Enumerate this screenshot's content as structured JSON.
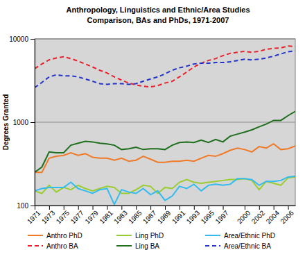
{
  "chart_data": {
    "type": "line",
    "title": "Anthropology, Linguistics and Ethnic/Area Studies",
    "subtitle": "Comparison, BAs and PhDs, 1971-2007",
    "y_label": "Degrees Granted",
    "x": [
      1971,
      1972,
      1973,
      1974,
      1975,
      1976,
      1977,
      1978,
      1979,
      1980,
      1981,
      1982,
      1983,
      1984,
      1985,
      1986,
      1987,
      1988,
      1989,
      1990,
      1991,
      1992,
      1993,
      1994,
      1995,
      1996,
      1997,
      1998,
      1999,
      2000,
      2001,
      2002,
      2003,
      2004,
      2005,
      2006,
      2007
    ],
    "xlim": [
      1971,
      2007
    ],
    "xticks": [
      1971,
      1973,
      1975,
      1977,
      1979,
      1981,
      1983,
      1985,
      1987,
      1989,
      1991,
      1993,
      1995,
      1997,
      2000,
      2002,
      2004,
      2006
    ],
    "ylim": [
      100,
      10000
    ],
    "yticks": [
      100,
      1000,
      10000
    ],
    "log": "y",
    "grid": true,
    "legend": "bottom",
    "series": [
      {
        "name": "Anthro PhD",
        "color": "#f07a28",
        "line_style": "solid",
        "values": [
          250,
          250,
          370,
          390,
          400,
          430,
          400,
          420,
          380,
          370,
          370,
          350,
          370,
          340,
          350,
          390,
          360,
          330,
          330,
          340,
          340,
          350,
          340,
          370,
          400,
          390,
          420,
          460,
          490,
          470,
          440,
          510,
          490,
          550,
          470,
          480,
          520
        ]
      },
      {
        "name": "Ling PhD",
        "color": "#9acd32",
        "line_style": "solid",
        "values": [
          150,
          140,
          175,
          145,
          165,
          155,
          175,
          160,
          150,
          160,
          170,
          165,
          140,
          140,
          155,
          175,
          170,
          140,
          165,
          160,
          190,
          205,
          190,
          185,
          190,
          195,
          200,
          205,
          205,
          210,
          200,
          155,
          195,
          185,
          175,
          215,
          220
        ]
      },
      {
        "name": "Area/Ethnic PhD",
        "color": "#33bbee",
        "line_style": "solid",
        "values": [
          150,
          160,
          165,
          165,
          165,
          190,
          160,
          150,
          140,
          155,
          160,
          103,
          155,
          145,
          140,
          160,
          135,
          150,
          115,
          130,
          170,
          160,
          180,
          150,
          175,
          180,
          175,
          180,
          210,
          210,
          205,
          175,
          195,
          195,
          200,
          220,
          225
        ]
      },
      {
        "name": "Anthro BA",
        "color": "#e8202a",
        "line_style": "dashed",
        "values": [
          4400,
          5000,
          5600,
          5900,
          6100,
          5800,
          5400,
          5000,
          4600,
          4200,
          3900,
          3500,
          3200,
          2950,
          2800,
          2700,
          2650,
          2750,
          2950,
          3100,
          3500,
          4000,
          4600,
          5100,
          5500,
          5800,
          6300,
          6700,
          6900,
          7100,
          6900,
          7100,
          7500,
          7700,
          7800,
          8200,
          8100
        ]
      },
      {
        "name": "Ling BA",
        "color": "#1f6f1f",
        "line_style": "solid",
        "values": [
          250,
          290,
          440,
          430,
          430,
          530,
          560,
          590,
          580,
          560,
          550,
          530,
          470,
          480,
          500,
          470,
          480,
          480,
          470,
          530,
          570,
          580,
          570,
          610,
          570,
          620,
          580,
          680,
          720,
          760,
          810,
          880,
          950,
          1050,
          1050,
          1200,
          1350
        ]
      },
      {
        "name": "Area/Ethnic BA",
        "color": "#2233cc",
        "line_style": "dashed",
        "values": [
          2600,
          3000,
          3500,
          3700,
          3600,
          3600,
          3500,
          3300,
          3100,
          2900,
          2850,
          2900,
          2900,
          2850,
          2900,
          3100,
          3300,
          3500,
          3800,
          4200,
          4500,
          4700,
          5000,
          5100,
          5100,
          5200,
          5200,
          5300,
          5500,
          5700,
          5600,
          5700,
          5900,
          6200,
          6600,
          7000,
          7200
        ]
      }
    ]
  }
}
